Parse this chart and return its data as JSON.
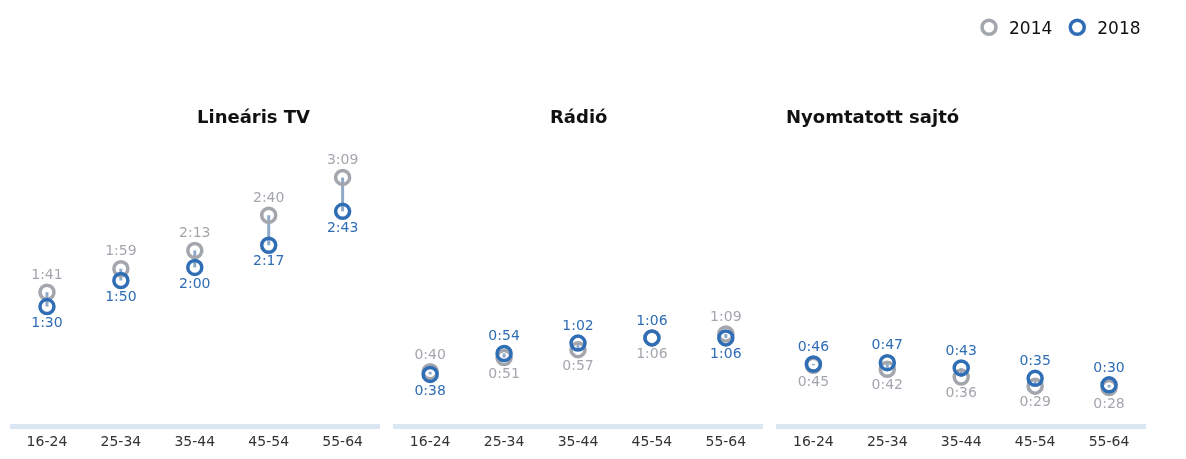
{
  "chart_data": [
    {
      "type": "scatter",
      "title": "Lineáris TV",
      "categories": [
        "16-24",
        "25-34",
        "35-44",
        "45-54",
        "55-64"
      ],
      "marker": "circle",
      "legend": "top right",
      "series": [
        {
          "name": "2014",
          "color": "#a3a6ad",
          "values": [
            101,
            119,
            133,
            160,
            189
          ],
          "value_labels": [
            "1:41",
            "1:59",
            "2:13",
            "2:40",
            "3:09"
          ]
        },
        {
          "name": "2018",
          "color": "#2f6db5",
          "values": [
            90,
            110,
            120,
            137,
            163
          ],
          "value_labels": [
            "1:30",
            "1:50",
            "2:00",
            "2:17",
            "2:43"
          ]
        }
      ]
    },
    {
      "type": "scatter",
      "title": "Rádió",
      "categories": [
        "16-24",
        "25-34",
        "35-44",
        "45-54",
        "55-64"
      ],
      "marker": "circle",
      "series": [
        {
          "name": "2014",
          "color": "#a3a6ad",
          "values": [
            40,
            51,
            57,
            66,
            69
          ],
          "value_labels": [
            "0:40",
            "0:51",
            "0:57",
            "1:06",
            "1:09"
          ]
        },
        {
          "name": "2018",
          "color": "#2f6db5",
          "values": [
            38,
            54,
            62,
            66,
            66
          ],
          "value_labels": [
            "0:38",
            "0:54",
            "1:02",
            "1:06",
            "1:06"
          ]
        }
      ]
    },
    {
      "type": "scatter",
      "title": "Nyomtatott sajtó",
      "categories": [
        "16-24",
        "25-34",
        "35-44",
        "45-54",
        "55-64"
      ],
      "marker": "circle",
      "series": [
        {
          "name": "2014",
          "color": "#a3a6ad",
          "values": [
            45,
            42,
            36,
            29,
            28
          ],
          "value_labels": [
            "0:45",
            "0:42",
            "0:36",
            "0:29",
            "0:28"
          ]
        },
        {
          "name": "2018",
          "color": "#2f6db5",
          "values": [
            46,
            47,
            43,
            35,
            30
          ],
          "value_labels": [
            "0:46",
            "0:47",
            "0:43",
            "0:35",
            "0:30"
          ]
        }
      ]
    }
  ]
}
